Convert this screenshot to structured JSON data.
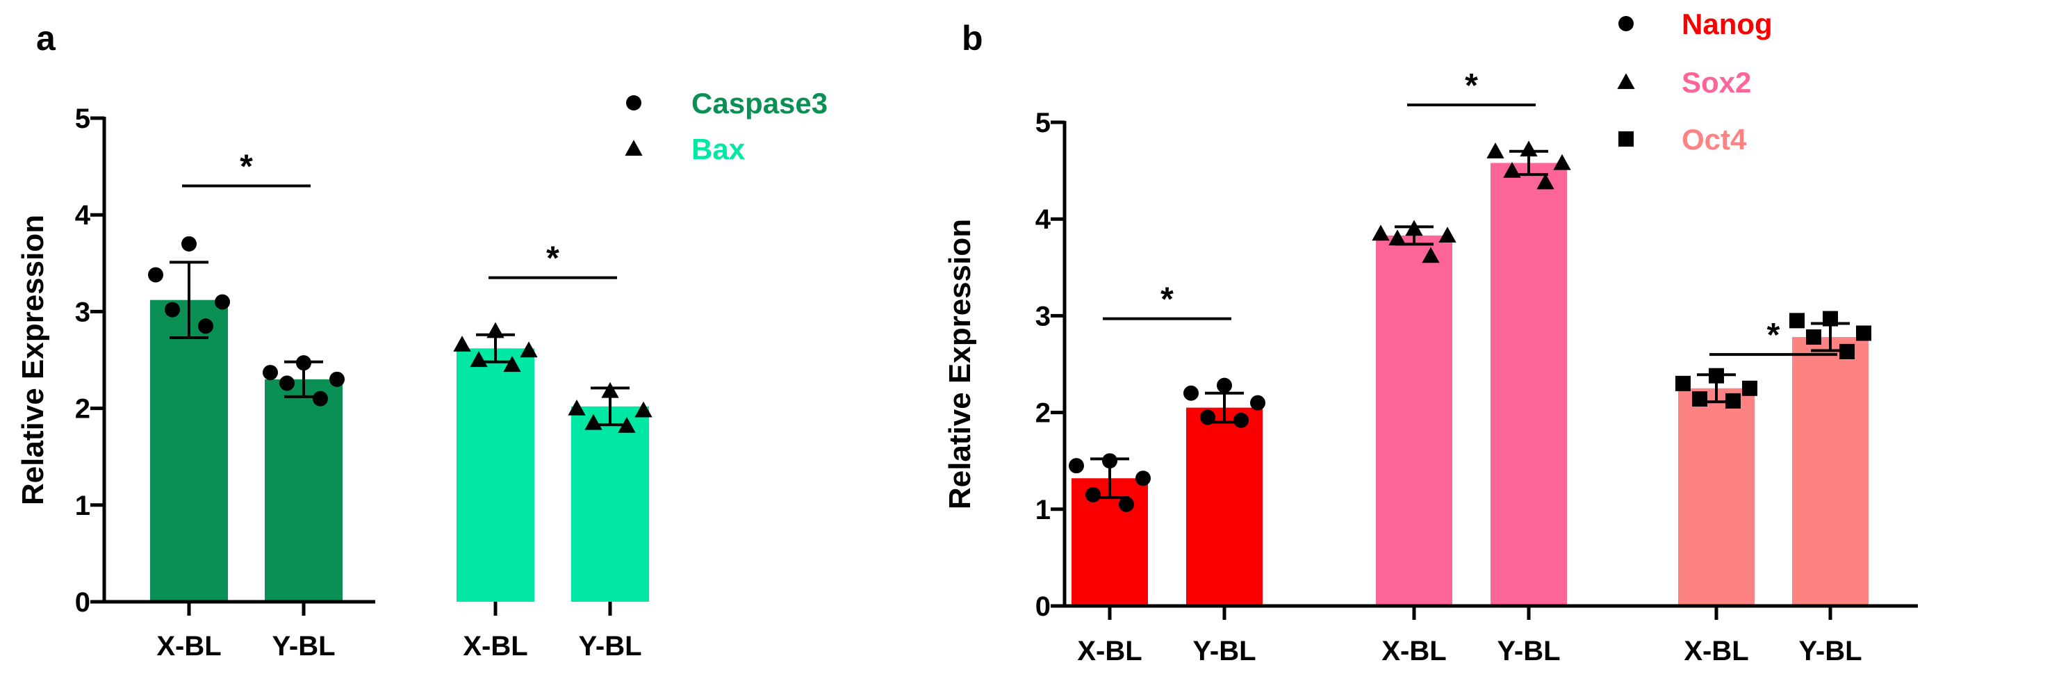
{
  "chart_data": [
    {
      "panel_label": "a",
      "type": "bar",
      "ylabel": "Relative Expression",
      "ylim": [
        0,
        5
      ],
      "yticks": [
        0,
        1,
        2,
        3,
        4,
        5
      ],
      "categories": [
        "X-BL",
        "Y-BL",
        "X-BL",
        "Y-BL"
      ],
      "bar_series": [
        0,
        0,
        1,
        1
      ],
      "series": [
        {
          "name": "Caspase3",
          "color": "#0a8f55",
          "marker": "circle"
        },
        {
          "name": "Bax",
          "color": "#00e8a4",
          "marker": "triangle"
        }
      ],
      "values": [
        3.12,
        2.3,
        2.62,
        2.02
      ],
      "errors": [
        0.39,
        0.18,
        0.14,
        0.19
      ],
      "points": [
        [
          3.7,
          3.38,
          3.1,
          3.02,
          2.85
        ],
        [
          2.47,
          2.37,
          2.3,
          2.26,
          2.1
        ],
        [
          2.8,
          2.66,
          2.6,
          2.5,
          2.45
        ],
        [
          2.18,
          2.0,
          1.98,
          1.85,
          1.82
        ]
      ],
      "significance": [
        {
          "bars": [
            0,
            1
          ],
          "label": "*",
          "y": 4.3
        },
        {
          "bars": [
            2,
            3
          ],
          "label": "*",
          "y": 3.35
        }
      ],
      "legend_placement": "top-right"
    },
    {
      "panel_label": "b",
      "type": "bar",
      "ylabel": "Relative Expression",
      "ylim": [
        0,
        5
      ],
      "yticks": [
        0,
        1,
        2,
        3,
        4,
        5
      ],
      "categories": [
        "X-BL",
        "Y-BL",
        "X-BL",
        "Y-BL",
        "X-BL",
        "Y-BL"
      ],
      "bar_series": [
        0,
        0,
        1,
        1,
        2,
        2
      ],
      "series": [
        {
          "name": "Nanog",
          "color": "#fb0000",
          "marker": "circle"
        },
        {
          "name": "Sox2",
          "color": "#fd6498",
          "marker": "triangle"
        },
        {
          "name": "Oct4",
          "color": "#fd8282",
          "marker": "square"
        }
      ],
      "values": [
        1.32,
        2.05,
        3.83,
        4.58,
        2.25,
        2.78
      ],
      "errors": [
        0.2,
        0.15,
        0.09,
        0.12,
        0.14,
        0.14
      ],
      "points": [
        [
          1.5,
          1.45,
          1.32,
          1.15,
          1.05
        ],
        [
          2.28,
          2.2,
          2.1,
          1.95,
          1.92
        ],
        [
          3.9,
          3.85,
          3.83,
          3.8,
          3.62
        ],
        [
          4.72,
          4.7,
          4.58,
          4.5,
          4.38
        ],
        [
          2.38,
          2.3,
          2.25,
          2.14,
          2.12
        ],
        [
          2.97,
          2.95,
          2.82,
          2.78,
          2.63
        ]
      ],
      "significance": [
        {
          "bars": [
            0,
            1
          ],
          "label": "*",
          "y": 2.97
        },
        {
          "bars": [
            2,
            3
          ],
          "label": "*",
          "y": 5.18
        },
        {
          "bars": [
            4,
            5
          ],
          "label": "*",
          "y": 2.6
        }
      ],
      "legend_placement": "top-right"
    }
  ]
}
